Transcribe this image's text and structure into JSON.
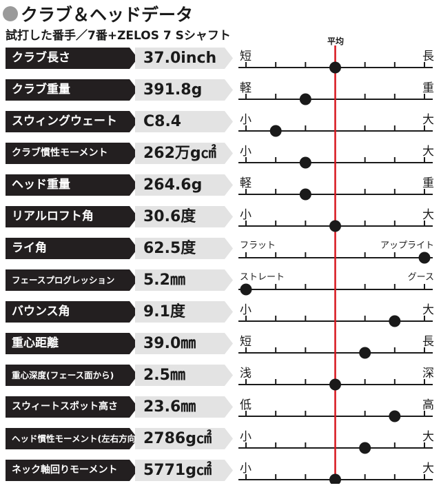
{
  "header": {
    "title": "クラブ＆ヘッドデータ",
    "subtitle": "試打した番手／7番+ZELOS 7 Sシャフト"
  },
  "colors": {
    "name_bg": "#231f20",
    "value_bg": "#e3e3e3",
    "average_line": "#d7151d",
    "marker": "#1a1a1a"
  },
  "chart_data": {
    "type": "scatter",
    "title": "クラブ＆ヘッドデータ",
    "subtitle": "試打した番手／7番+ZELOS 7 Sシャフト",
    "average_label": "平均",
    "scale_ticks": 7,
    "average_position": 3,
    "rows": [
      {
        "name": "クラブ長さ",
        "value": "37.0inch",
        "low": "短",
        "high": "長",
        "position": 3
      },
      {
        "name": "クラブ重量",
        "value": "391.8g",
        "low": "軽",
        "high": "重",
        "position": 2
      },
      {
        "name": "スウィングウェート",
        "value": "C8.4",
        "low": "小",
        "high": "大",
        "position": 1
      },
      {
        "name": "クラブ慣性モーメント",
        "value": "262万g㎠",
        "low": "小",
        "high": "大",
        "position": 2
      },
      {
        "name": "ヘッド重量",
        "value": "264.6g",
        "low": "軽",
        "high": "重",
        "position": 2
      },
      {
        "name": "リアルロフト角",
        "value": "30.6度",
        "low": "小",
        "high": "大",
        "position": 3
      },
      {
        "name": "ライ角",
        "value": "62.5度",
        "low": "フラット",
        "high": "アップライト",
        "position": 6
      },
      {
        "name": "フェースプログレッション",
        "value": "5.2㎜",
        "low": "ストレート",
        "high": "グース",
        "position": 0
      },
      {
        "name": "バウンス角",
        "value": "9.1度",
        "low": "小",
        "high": "大",
        "position": 5
      },
      {
        "name": "重心距離",
        "value": "39.0㎜",
        "low": "短",
        "high": "長",
        "position": 4
      },
      {
        "name": "重心深度(フェース面から)",
        "value": "2.5㎜",
        "low": "浅",
        "high": "深",
        "position": 3
      },
      {
        "name": "スウィートスポット高さ",
        "value": "23.6㎜",
        "low": "低",
        "high": "高",
        "position": 5
      },
      {
        "name": "ヘッド慣性モーメント(左右方向)",
        "value": "2786g㎠",
        "low": "小",
        "high": "大",
        "position": 4
      },
      {
        "name": "ネック軸回りモーメント",
        "value": "5771g㎠",
        "low": "小",
        "high": "大",
        "position": 3
      }
    ]
  }
}
